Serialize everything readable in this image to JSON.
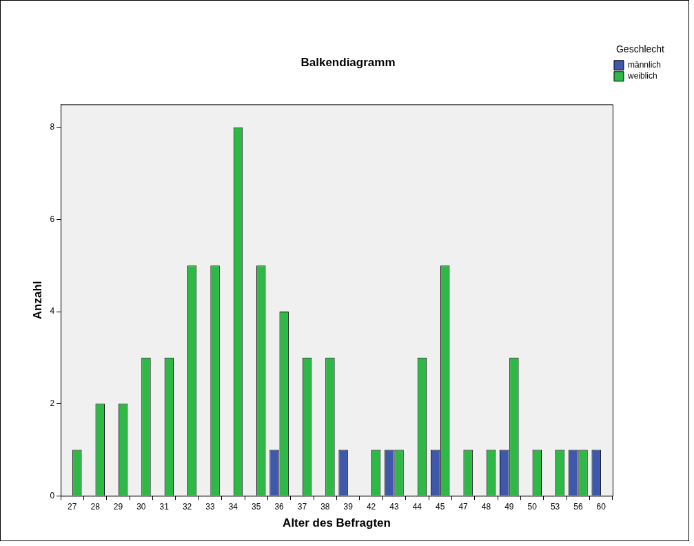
{
  "chart_data": {
    "type": "bar",
    "title": "Balkendiagramm",
    "xlabel": "Alter des Befragten",
    "ylabel": "Anzahl",
    "legend_title": "Geschlecht",
    "categories": [
      "27",
      "28",
      "29",
      "30",
      "31",
      "32",
      "33",
      "34",
      "35",
      "36",
      "37",
      "38",
      "39",
      "42",
      "43",
      "44",
      "45",
      "47",
      "48",
      "49",
      "50",
      "53",
      "56",
      "60"
    ],
    "series": [
      {
        "name": "männlich",
        "color": "#3e58ac",
        "values": [
          null,
          null,
          null,
          null,
          null,
          null,
          null,
          null,
          null,
          1,
          null,
          null,
          1,
          null,
          1,
          null,
          1,
          null,
          null,
          1,
          null,
          null,
          1,
          1
        ]
      },
      {
        "name": "weiblich",
        "color": "#2eb845",
        "values": [
          1,
          2,
          2,
          3,
          3,
          5,
          5,
          8,
          5,
          4,
          3,
          3,
          null,
          1,
          1,
          3,
          5,
          1,
          1,
          3,
          1,
          1,
          1,
          null
        ]
      }
    ],
    "ylim": [
      0,
      8.5
    ],
    "yticks": [
      0,
      2,
      4,
      6,
      8
    ],
    "grid": false,
    "legend": "top right"
  }
}
